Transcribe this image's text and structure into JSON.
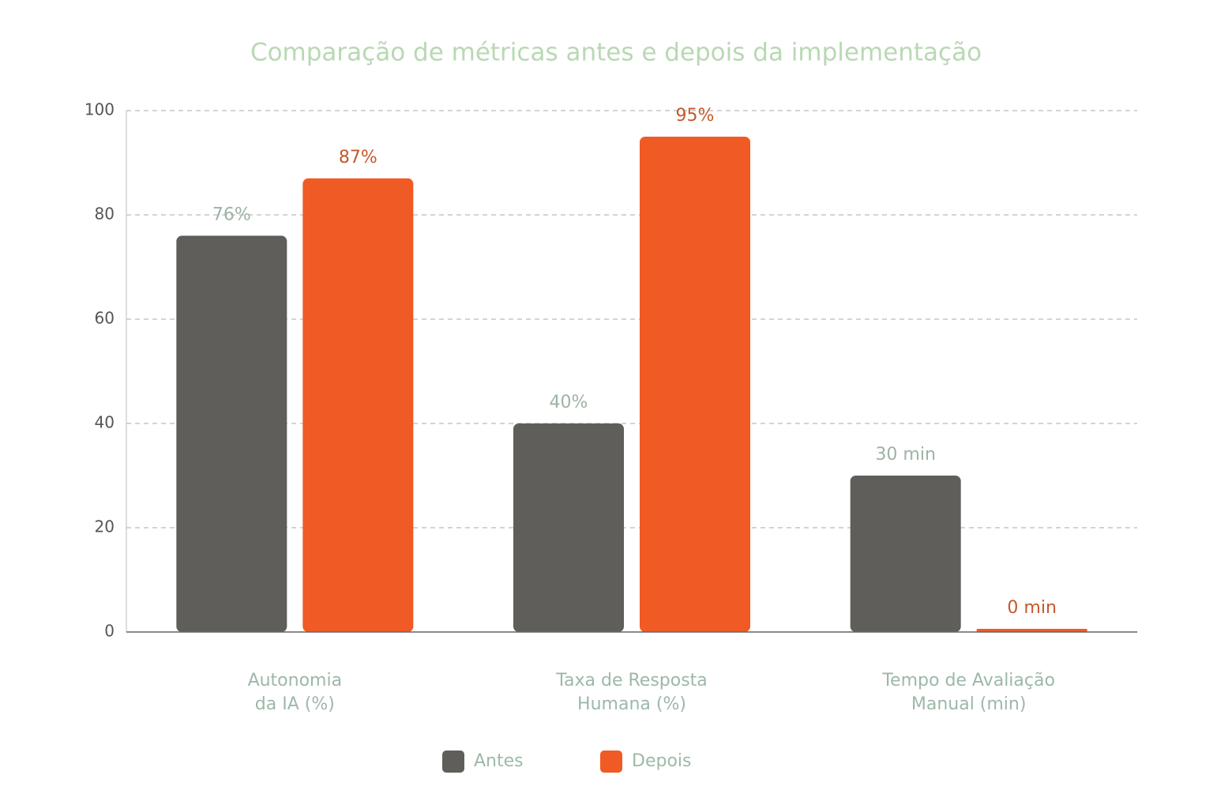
{
  "chart_data": {
    "type": "bar",
    "title": "Comparação de métricas antes e depois da implementação",
    "categories": [
      [
        "Autonomia",
        "da IA (%)"
      ],
      [
        "Taxa de Resposta",
        "Humana (%)"
      ],
      [
        "Tempo de Avaliação",
        "Manual (min)"
      ]
    ],
    "series": [
      {
        "name": "Antes",
        "color": "#5f5e5a",
        "label_color": "#9db3a3",
        "values": [
          76,
          40,
          30
        ],
        "value_labels": [
          "76%",
          "40%",
          "30 min"
        ]
      },
      {
        "name": "Depois",
        "color": "#f05a24",
        "label_color": "#c4592c",
        "values": [
          87,
          95,
          0
        ],
        "value_labels": [
          "87%",
          "95%",
          "0 min"
        ]
      }
    ],
    "ylim": [
      0,
      100
    ],
    "yticks": [
      0,
      20,
      40,
      60,
      80,
      100
    ],
    "grid": true,
    "legend": "bottom"
  }
}
